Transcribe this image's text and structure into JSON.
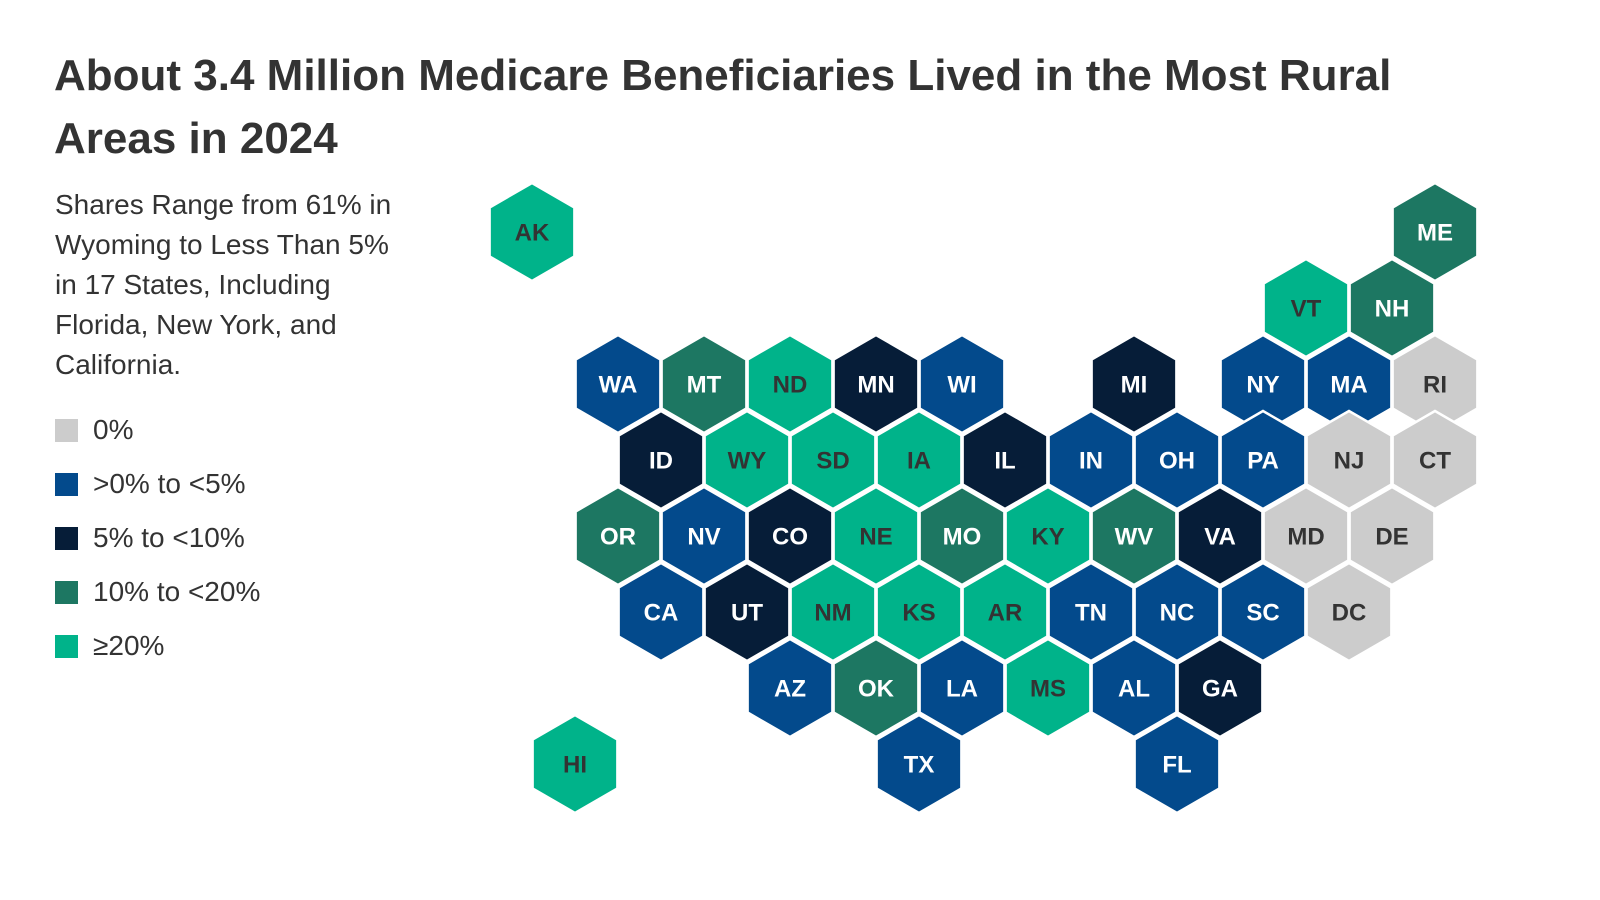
{
  "title": "About 3.4 Million Medicare Beneficiaries Lived in the Most Rural Areas in 2024",
  "subtitle": "Shares Range from 61% in Wyoming to Less Than 5% in 17 States, Including Florida, New York, and California.",
  "legend": [
    {
      "label": "0%",
      "key": "zero",
      "color": "#cccccc"
    },
    {
      "label": ">0% to <5%",
      "key": "lt5",
      "color": "#034a8c"
    },
    {
      "label": "5% to <10%",
      "key": "5to10",
      "color": "#061d38"
    },
    {
      "label": "10% to <20%",
      "key": "10to20",
      "color": "#1d7762"
    },
    {
      "label": "≥20%",
      "key": "ge20",
      "color": "#00b38a"
    }
  ],
  "states": [
    {
      "abbr": "AK",
      "category": "ge20",
      "row": 0,
      "col": 3.5
    },
    {
      "abbr": "ME",
      "category": "10to20",
      "row": 0,
      "col": 14
    },
    {
      "abbr": "VT",
      "category": "ge20",
      "row": 1,
      "col": 12.5
    },
    {
      "abbr": "NH",
      "category": "10to20",
      "row": 1,
      "col": 13.5
    },
    {
      "abbr": "WA",
      "category": "lt5",
      "row": 2,
      "col": 4.5
    },
    {
      "abbr": "MT",
      "category": "10to20",
      "row": 2,
      "col": 5.5
    },
    {
      "abbr": "ND",
      "category": "ge20",
      "row": 2,
      "col": 6.5
    },
    {
      "abbr": "MN",
      "category": "5to10",
      "row": 2,
      "col": 7.5
    },
    {
      "abbr": "WI",
      "category": "lt5",
      "row": 2,
      "col": 8.5
    },
    {
      "abbr": "MI",
      "category": "5to10",
      "row": 2,
      "col": 10.5
    },
    {
      "abbr": "NY",
      "category": "lt5",
      "row": 2,
      "col": 12
    },
    {
      "abbr": "MA",
      "category": "lt5",
      "row": 2,
      "col": 13
    },
    {
      "abbr": "RI",
      "category": "zero",
      "row": 2,
      "col": 14
    },
    {
      "abbr": "ID",
      "category": "5to10",
      "row": 3,
      "col": 5
    },
    {
      "abbr": "WY",
      "category": "ge20",
      "row": 3,
      "col": 6
    },
    {
      "abbr": "SD",
      "category": "ge20",
      "row": 3,
      "col": 7
    },
    {
      "abbr": "IA",
      "category": "ge20",
      "row": 3,
      "col": 8
    },
    {
      "abbr": "IL",
      "category": "5to10",
      "row": 3,
      "col": 9
    },
    {
      "abbr": "IN",
      "category": "lt5",
      "row": 3,
      "col": 10
    },
    {
      "abbr": "OH",
      "category": "lt5",
      "row": 3,
      "col": 11
    },
    {
      "abbr": "PA",
      "category": "lt5",
      "row": 3,
      "col": 12
    },
    {
      "abbr": "NJ",
      "category": "zero",
      "row": 3,
      "col": 13
    },
    {
      "abbr": "CT",
      "category": "zero",
      "row": 3,
      "col": 14
    },
    {
      "abbr": "OR",
      "category": "10to20",
      "row": 4,
      "col": 4.5
    },
    {
      "abbr": "NV",
      "category": "lt5",
      "row": 4,
      "col": 5.5
    },
    {
      "abbr": "CO",
      "category": "5to10",
      "row": 4,
      "col": 6.5
    },
    {
      "abbr": "NE",
      "category": "ge20",
      "row": 4,
      "col": 7.5
    },
    {
      "abbr": "MO",
      "category": "10to20",
      "row": 4,
      "col": 8.5
    },
    {
      "abbr": "KY",
      "category": "ge20",
      "row": 4,
      "col": 9.5
    },
    {
      "abbr": "WV",
      "category": "10to20",
      "row": 4,
      "col": 10.5
    },
    {
      "abbr": "VA",
      "category": "5to10",
      "row": 4,
      "col": 11.5
    },
    {
      "abbr": "MD",
      "category": "zero",
      "row": 4,
      "col": 12.5
    },
    {
      "abbr": "DE",
      "category": "zero",
      "row": 4,
      "col": 13.5
    },
    {
      "abbr": "CA",
      "category": "lt5",
      "row": 5,
      "col": 5
    },
    {
      "abbr": "UT",
      "category": "5to10",
      "row": 5,
      "col": 6
    },
    {
      "abbr": "NM",
      "category": "ge20",
      "row": 5,
      "col": 7
    },
    {
      "abbr": "KS",
      "category": "ge20",
      "row": 5,
      "col": 8
    },
    {
      "abbr": "AR",
      "category": "ge20",
      "row": 5,
      "col": 9
    },
    {
      "abbr": "TN",
      "category": "lt5",
      "row": 5,
      "col": 10
    },
    {
      "abbr": "NC",
      "category": "lt5",
      "row": 5,
      "col": 11
    },
    {
      "abbr": "SC",
      "category": "lt5",
      "row": 5,
      "col": 12
    },
    {
      "abbr": "DC",
      "category": "zero",
      "row": 5,
      "col": 13
    },
    {
      "abbr": "AZ",
      "category": "lt5",
      "row": 6,
      "col": 6.5
    },
    {
      "abbr": "OK",
      "category": "10to20",
      "row": 6,
      "col": 7.5
    },
    {
      "abbr": "LA",
      "category": "lt5",
      "row": 6,
      "col": 8.5
    },
    {
      "abbr": "MS",
      "category": "ge20",
      "row": 6,
      "col": 9.5
    },
    {
      "abbr": "AL",
      "category": "lt5",
      "row": 6,
      "col": 10.5
    },
    {
      "abbr": "GA",
      "category": "5to10",
      "row": 6,
      "col": 11.5
    },
    {
      "abbr": "HI",
      "category": "ge20",
      "row": 7,
      "col": 4
    },
    {
      "abbr": "TX",
      "category": "lt5",
      "row": 7,
      "col": 8
    },
    {
      "abbr": "FL",
      "category": "lt5",
      "row": 7,
      "col": 11
    }
  ]
}
